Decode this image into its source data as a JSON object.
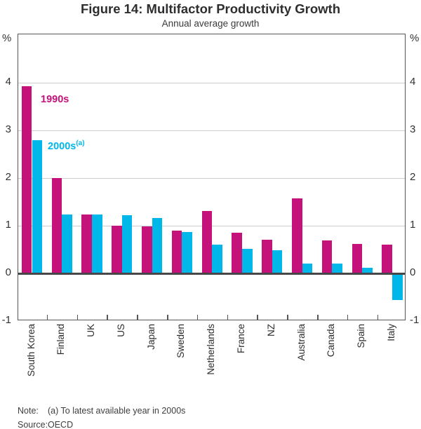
{
  "chart_data": {
    "type": "bar",
    "title": "Figure 14: Multifactor Productivity Growth",
    "subtitle": "Annual average growth",
    "unit": "%",
    "categories": [
      "South Korea",
      "Finland",
      "UK",
      "US",
      "Japan",
      "Sweden",
      "Netherlands",
      "France",
      "NZ",
      "Australia",
      "Canada",
      "Spain",
      "Italy"
    ],
    "series": [
      {
        "name": "1990s",
        "color": "#C5127B",
        "values": [
          3.92,
          2.0,
          1.23,
          1.0,
          0.98,
          0.9,
          1.31,
          0.85,
          0.7,
          1.57,
          0.69,
          0.62,
          0.6
        ]
      },
      {
        "name": "2000s",
        "superscript": "(a)",
        "color": "#00B7EA",
        "values": [
          2.8,
          1.24,
          1.23,
          1.22,
          1.16,
          0.87,
          0.6,
          0.51,
          0.49,
          0.2,
          0.2,
          0.12,
          -0.56
        ]
      }
    ],
    "ylim": [
      -1,
      5
    ],
    "y_ticks": [
      {
        "label": "4",
        "value": 4
      },
      {
        "label": "3",
        "value": 3
      },
      {
        "label": "2",
        "value": 2
      },
      {
        "label": "1",
        "value": 1
      },
      {
        "label": "0",
        "value": 0
      },
      {
        "label": "-1",
        "value": -1
      }
    ],
    "y_gridlines": [
      1,
      2,
      3,
      4
    ],
    "legend_position": "inside-top-left",
    "grid": "horizontal-on"
  },
  "note": {
    "label": "Note:",
    "text": "(a) To latest available year in 2000s"
  },
  "source": {
    "label": "Source:",
    "text": "OECD"
  }
}
